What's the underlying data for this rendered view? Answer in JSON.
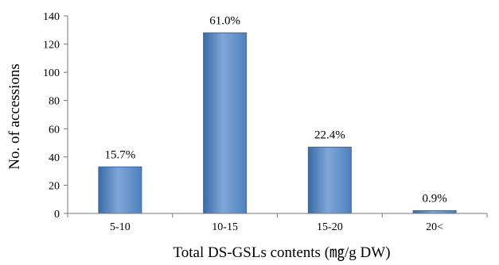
{
  "chart_data": {
    "type": "bar",
    "title": "",
    "categories": [
      "5-10",
      "10-15",
      "15-20",
      "20<"
    ],
    "values": [
      33,
      128,
      47,
      2
    ],
    "data_labels": [
      "15.7%",
      "61.0%",
      "22.4%",
      "0.9%"
    ],
    "xlabel": "Total DS-GSLs contents (㎎/g DW)",
    "ylabel": "No. of accessions",
    "ylim": [
      0,
      140
    ],
    "yticks": [
      0,
      20,
      40,
      60,
      80,
      100,
      120,
      140
    ],
    "grid": false,
    "legend": "none",
    "bar_color": "#4f81bd",
    "bar_highlight": "#7fa6d8",
    "bar_edge": "#3a6aa5"
  }
}
